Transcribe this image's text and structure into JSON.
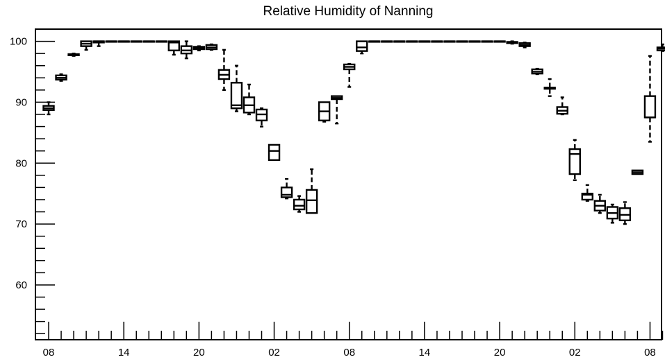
{
  "chart_data": {
    "type": "box",
    "title": "Relative Humidity of Nanning",
    "xlabel": "",
    "ylabel": "",
    "ylim": [
      51,
      102
    ],
    "y_ticks": [
      60,
      70,
      80,
      90,
      100
    ],
    "x_ticks": [
      "08",
      "14",
      "20",
      "02",
      "08",
      "14",
      "20",
      "02",
      "08"
    ],
    "grid": false,
    "boxes": [
      {
        "index": 0,
        "min": 88.0,
        "q1": 88.7,
        "median": 89.0,
        "q3": 89.4,
        "max": 90.0
      },
      {
        "index": 1,
        "min": 93.5,
        "q1": 93.7,
        "median": 94.0,
        "q3": 94.4,
        "max": 94.6
      },
      {
        "index": 2,
        "min": 97.6,
        "q1": 97.7,
        "median": 97.8,
        "q3": 97.9,
        "max": 98.0
      },
      {
        "index": 3,
        "min": 98.6,
        "q1": 99.2,
        "median": 99.6,
        "q3": 100.0,
        "max": 100.0
      },
      {
        "index": 4,
        "min": 99.2,
        "q1": 99.8,
        "median": 100.0,
        "q3": 100.0,
        "max": 100.0
      },
      {
        "index": 5,
        "min": 100.0,
        "q1": 100.0,
        "median": 100.0,
        "q3": 100.0,
        "max": 100.0
      },
      {
        "index": 6,
        "min": 100.0,
        "q1": 100.0,
        "median": 100.0,
        "q3": 100.0,
        "max": 100.0
      },
      {
        "index": 7,
        "min": 100.0,
        "q1": 100.0,
        "median": 100.0,
        "q3": 100.0,
        "max": 100.0
      },
      {
        "index": 8,
        "min": 100.0,
        "q1": 100.0,
        "median": 100.0,
        "q3": 100.0,
        "max": 100.0
      },
      {
        "index": 9,
        "min": 100.0,
        "q1": 100.0,
        "median": 100.0,
        "q3": 100.0,
        "max": 100.0
      },
      {
        "index": 10,
        "min": 97.8,
        "q1": 98.5,
        "median": 99.8,
        "q3": 100.0,
        "max": 100.0
      },
      {
        "index": 11,
        "min": 97.2,
        "q1": 98.0,
        "median": 98.5,
        "q3": 99.2,
        "max": 100.0
      },
      {
        "index": 12,
        "min": 98.5,
        "q1": 98.7,
        "median": 98.9,
        "q3": 99.1,
        "max": 99.2
      },
      {
        "index": 13,
        "min": 98.6,
        "q1": 98.7,
        "median": 99.0,
        "q3": 99.4,
        "max": 99.5
      },
      {
        "index": 14,
        "min": 92.0,
        "q1": 93.8,
        "median": 94.5,
        "q3": 95.3,
        "max": 98.6
      },
      {
        "index": 15,
        "min": 88.5,
        "q1": 89.0,
        "median": 89.5,
        "q3": 93.2,
        "max": 96.0
      },
      {
        "index": 16,
        "min": 88.0,
        "q1": 88.3,
        "median": 89.5,
        "q3": 90.8,
        "max": 92.9
      },
      {
        "index": 17,
        "min": 86.0,
        "q1": 87.0,
        "median": 88.0,
        "q3": 88.8,
        "max": 89.0
      },
      {
        "index": 18,
        "min": 80.5,
        "q1": 80.5,
        "median": 82.0,
        "q3": 83.0,
        "max": 83.0
      },
      {
        "index": 19,
        "min": 74.2,
        "q1": 74.4,
        "median": 74.8,
        "q3": 76.0,
        "max": 77.4
      },
      {
        "index": 20,
        "min": 72.0,
        "q1": 72.4,
        "median": 73.0,
        "q3": 74.0,
        "max": 74.6
      },
      {
        "index": 21,
        "min": 71.8,
        "q1": 71.8,
        "median": 73.9,
        "q3": 75.6,
        "max": 79.0
      },
      {
        "index": 22,
        "min": 86.8,
        "q1": 87.0,
        "median": 88.5,
        "q3": 90.0,
        "max": 90.0
      },
      {
        "index": 23,
        "min": 86.5,
        "q1": 90.5,
        "median": 90.7,
        "q3": 91.0,
        "max": 91.0
      },
      {
        "index": 24,
        "min": 92.5,
        "q1": 95.4,
        "median": 95.8,
        "q3": 96.2,
        "max": 96.3
      },
      {
        "index": 25,
        "min": 98.0,
        "q1": 98.4,
        "median": 99.0,
        "q3": 100.0,
        "max": 100.0
      },
      {
        "index": 26,
        "min": 100.0,
        "q1": 100.0,
        "median": 100.0,
        "q3": 100.0,
        "max": 100.0
      },
      {
        "index": 27,
        "min": 100.0,
        "q1": 100.0,
        "median": 100.0,
        "q3": 100.0,
        "max": 100.0
      },
      {
        "index": 28,
        "min": 100.0,
        "q1": 100.0,
        "median": 100.0,
        "q3": 100.0,
        "max": 100.0
      },
      {
        "index": 29,
        "min": 100.0,
        "q1": 100.0,
        "median": 100.0,
        "q3": 100.0,
        "max": 100.0
      },
      {
        "index": 30,
        "min": 100.0,
        "q1": 100.0,
        "median": 100.0,
        "q3": 100.0,
        "max": 100.0
      },
      {
        "index": 31,
        "min": 100.0,
        "q1": 100.0,
        "median": 100.0,
        "q3": 100.0,
        "max": 100.0
      },
      {
        "index": 32,
        "min": 100.0,
        "q1": 100.0,
        "median": 100.0,
        "q3": 100.0,
        "max": 100.0
      },
      {
        "index": 33,
        "min": 100.0,
        "q1": 100.0,
        "median": 100.0,
        "q3": 100.0,
        "max": 100.0
      },
      {
        "index": 34,
        "min": 100.0,
        "q1": 100.0,
        "median": 100.0,
        "q3": 100.0,
        "max": 100.0
      },
      {
        "index": 35,
        "min": 100.0,
        "q1": 100.0,
        "median": 100.0,
        "q3": 100.0,
        "max": 100.0
      },
      {
        "index": 36,
        "min": 100.0,
        "q1": 100.0,
        "median": 100.0,
        "q3": 100.0,
        "max": 100.0
      },
      {
        "index": 37,
        "min": 99.6,
        "q1": 99.7,
        "median": 99.8,
        "q3": 99.9,
        "max": 100.0
      },
      {
        "index": 38,
        "min": 99.0,
        "q1": 99.2,
        "median": 99.4,
        "q3": 99.7,
        "max": 99.8
      },
      {
        "index": 39,
        "min": 94.6,
        "q1": 94.7,
        "median": 95.0,
        "q3": 95.4,
        "max": 95.5
      },
      {
        "index": 40,
        "min": 91.0,
        "q1": 92.2,
        "median": 92.3,
        "q3": 92.4,
        "max": 93.8
      },
      {
        "index": 41,
        "min": 88.0,
        "q1": 88.1,
        "median": 88.6,
        "q3": 89.2,
        "max": 90.8
      },
      {
        "index": 42,
        "min": 77.2,
        "q1": 78.2,
        "median": 81.5,
        "q3": 82.3,
        "max": 83.8
      },
      {
        "index": 43,
        "min": 73.8,
        "q1": 74.0,
        "median": 74.8,
        "q3": 75.0,
        "max": 76.4
      },
      {
        "index": 44,
        "min": 71.8,
        "q1": 72.2,
        "median": 73.0,
        "q3": 73.8,
        "max": 74.8
      },
      {
        "index": 45,
        "min": 70.2,
        "q1": 70.9,
        "median": 71.8,
        "q3": 72.8,
        "max": 73.2
      },
      {
        "index": 46,
        "min": 70.0,
        "q1": 70.6,
        "median": 71.5,
        "q3": 72.6,
        "max": 73.6
      },
      {
        "index": 47,
        "min": 78.2,
        "q1": 78.2,
        "median": 78.5,
        "q3": 78.8,
        "max": 78.8
      },
      {
        "index": 48,
        "min": 83.5,
        "q1": 87.5,
        "median": 87.5,
        "q3": 91.0,
        "max": 97.6
      },
      {
        "index": 49,
        "min": 98.4,
        "q1": 98.5,
        "median": 98.8,
        "q3": 99.0,
        "max": 99.5
      }
    ]
  }
}
